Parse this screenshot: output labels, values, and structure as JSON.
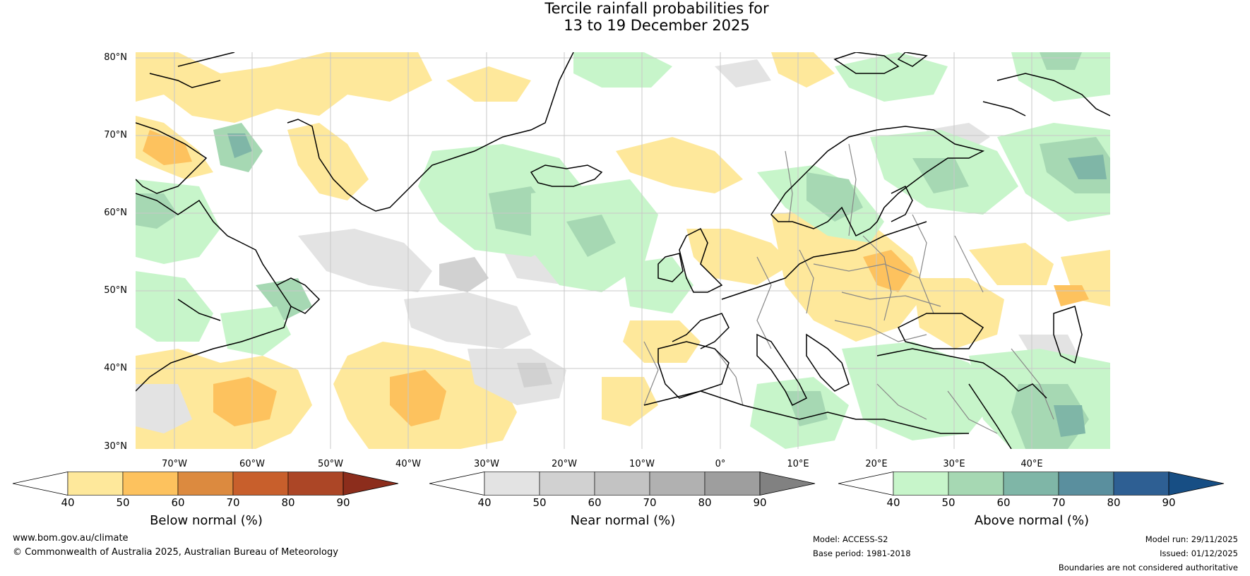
{
  "title": {
    "line1": "Tercile rainfall probabilities for",
    "line2": "13 to 19 December 2025"
  },
  "map": {
    "lat_labels": [
      "80°N",
      "70°N",
      "60°N",
      "50°N",
      "40°N",
      "30°N"
    ],
    "lon_labels": [
      "70°W",
      "60°W",
      "50°W",
      "40°W",
      "30°W",
      "20°W",
      "10°W",
      "0°",
      "10°E",
      "20°E",
      "30°E",
      "40°E"
    ],
    "colors": {
      "land_outline": "#000000",
      "country_borders": "#888888",
      "gridlines": "#c8c8c8"
    }
  },
  "colorbars": [
    {
      "name": "Below normal (%)",
      "ticks": [
        "40",
        "50",
        "60",
        "70",
        "80",
        "90"
      ],
      "colors": [
        "#ffffff",
        "#fee89b",
        "#fdc25e",
        "#dc8a3f",
        "#c85f2c",
        "#ac4626",
        "#8c2d1c"
      ]
    },
    {
      "name": "Near normal (%)",
      "ticks": [
        "40",
        "50",
        "60",
        "70",
        "80",
        "90"
      ],
      "colors": [
        "#ffffff",
        "#e3e3e3",
        "#d1d1d1",
        "#c3c3c3",
        "#b1b1b1",
        "#9e9e9e",
        "#818181"
      ]
    },
    {
      "name": "Above normal (%)",
      "ticks": [
        "40",
        "50",
        "60",
        "70",
        "80",
        "90"
      ],
      "colors": [
        "#ffffff",
        "#c7f5ca",
        "#a6d8b3",
        "#7fb6a7",
        "#5a8f9e",
        "#2e5f93",
        "#174e84"
      ]
    }
  ],
  "footer": {
    "website": "www.bom.gov.au/climate",
    "copyright": "© Commonwealth of Australia 2025, Australian Bureau of Meteorology",
    "model": "Model: ACCESS-S2",
    "base_period": "Base period: 1981-2018",
    "model_run": "Model run: 29/11/2025",
    "issued": "Issued: 01/12/2025",
    "disclaimer": "Boundaries are not considered authoritative"
  }
}
